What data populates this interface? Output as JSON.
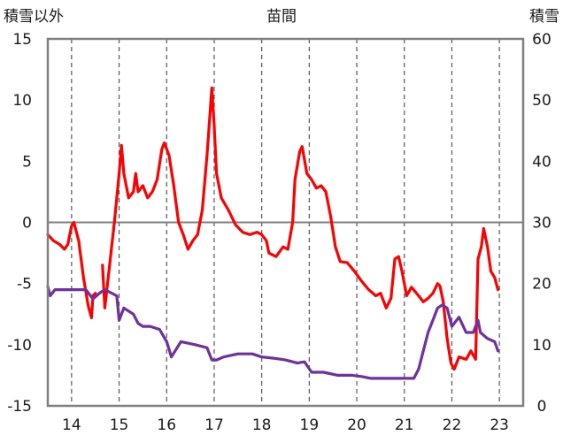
{
  "chart_data": {
    "type": "line",
    "title": "苗間",
    "left_axis_label": "積雪以外",
    "right_axis_label": "積雪",
    "x_ticks": [
      "14",
      "15",
      "16",
      "17",
      "18",
      "19",
      "20",
      "21",
      "22",
      "23"
    ],
    "y_left": {
      "ylim": [
        -15,
        15
      ],
      "ticks": [
        "15",
        "10",
        "5",
        "0",
        "-5",
        "-10",
        "-15"
      ]
    },
    "y_right": {
      "ylim": [
        0,
        60
      ],
      "ticks": [
        "60",
        "50",
        "40",
        "30",
        "20",
        "10",
        "0"
      ]
    },
    "grid": "vertical dashed at each year, horizontal zero line",
    "series": [
      {
        "axis": "left",
        "color": "#ff0000",
        "points": [
          [
            13.5,
            -1.0
          ],
          [
            13.62,
            -1.5
          ],
          [
            13.75,
            -1.8
          ],
          [
            13.85,
            -2.2
          ],
          [
            13.92,
            -1.8
          ],
          [
            14.0,
            -0.3
          ],
          [
            14.05,
            0.0
          ],
          [
            14.15,
            -1.5
          ],
          [
            14.25,
            -4.5
          ],
          [
            14.35,
            -6.8
          ],
          [
            14.42,
            -7.8
          ],
          [
            14.45,
            -6.0
          ],
          [
            14.5,
            -5.8
          ],
          [
            14.6,
            null
          ],
          [
            14.65,
            -3.5
          ],
          [
            14.7,
            -7.0
          ],
          [
            14.8,
            -3.5
          ],
          [
            14.9,
            0.0
          ],
          [
            14.95,
            2.0
          ],
          [
            15.0,
            4.0
          ],
          [
            15.05,
            6.3
          ],
          [
            15.1,
            4.0
          ],
          [
            15.15,
            3.0
          ],
          [
            15.2,
            2.0
          ],
          [
            15.3,
            2.5
          ],
          [
            15.35,
            4.0
          ],
          [
            15.4,
            2.5
          ],
          [
            15.5,
            3.0
          ],
          [
            15.6,
            2.0
          ],
          [
            15.7,
            2.5
          ],
          [
            15.8,
            3.5
          ],
          [
            15.9,
            6.0
          ],
          [
            15.95,
            6.5
          ],
          [
            16.05,
            5.5
          ],
          [
            16.15,
            3.0
          ],
          [
            16.25,
            0.0
          ],
          [
            16.35,
            -1.0
          ],
          [
            16.45,
            -2.2
          ],
          [
            16.55,
            -1.5
          ],
          [
            16.65,
            -1.0
          ],
          [
            16.75,
            1.0
          ],
          [
            16.85,
            5.5
          ],
          [
            16.95,
            11.0
          ],
          [
            17.0,
            8.0
          ],
          [
            17.05,
            4.0
          ],
          [
            17.15,
            2.0
          ],
          [
            17.3,
            1.0
          ],
          [
            17.45,
            -0.2
          ],
          [
            17.6,
            -0.8
          ],
          [
            17.75,
            -1.0
          ],
          [
            17.9,
            -0.8
          ],
          [
            18.0,
            -1.0
          ],
          [
            18.1,
            -1.5
          ],
          [
            18.15,
            -2.5
          ],
          [
            18.3,
            -2.8
          ],
          [
            18.45,
            -2.0
          ],
          [
            18.55,
            -2.2
          ],
          [
            18.65,
            0.0
          ],
          [
            18.7,
            3.5
          ],
          [
            18.8,
            5.8
          ],
          [
            18.85,
            6.2
          ],
          [
            18.95,
            4.0
          ],
          [
            19.05,
            3.5
          ],
          [
            19.15,
            2.8
          ],
          [
            19.25,
            3.0
          ],
          [
            19.35,
            2.5
          ],
          [
            19.45,
            0.5
          ],
          [
            19.55,
            -2.0
          ],
          [
            19.65,
            -3.2
          ],
          [
            19.8,
            -3.3
          ],
          [
            19.95,
            -4.0
          ],
          [
            20.1,
            -4.8
          ],
          [
            20.25,
            -5.5
          ],
          [
            20.4,
            -6.0
          ],
          [
            20.5,
            -5.8
          ],
          [
            20.62,
            -7.0
          ],
          [
            20.72,
            -6.2
          ],
          [
            20.8,
            -3.0
          ],
          [
            20.88,
            -2.8
          ],
          [
            20.95,
            -4.0
          ],
          [
            21.05,
            -6.0
          ],
          [
            21.15,
            -5.3
          ],
          [
            21.3,
            -6.0
          ],
          [
            21.4,
            -6.5
          ],
          [
            21.5,
            -6.2
          ],
          [
            21.6,
            -5.8
          ],
          [
            21.7,
            -5.0
          ],
          [
            21.75,
            -5.2
          ],
          [
            21.82,
            -6.5
          ],
          [
            21.9,
            -9.5
          ],
          [
            21.98,
            -11.5
          ],
          [
            22.05,
            -12.0
          ],
          [
            22.15,
            -11.0
          ],
          [
            22.3,
            -11.2
          ],
          [
            22.4,
            -10.5
          ],
          [
            22.5,
            -11.2
          ],
          [
            22.55,
            -3.0
          ],
          [
            22.62,
            -2.0
          ],
          [
            22.67,
            -0.5
          ],
          [
            22.75,
            -2.0
          ],
          [
            22.82,
            -4.0
          ],
          [
            22.9,
            -4.5
          ],
          [
            22.97,
            -5.5
          ]
        ]
      },
      {
        "axis": "right",
        "color": "#7030a0",
        "points": [
          [
            13.5,
            19.5
          ],
          [
            13.55,
            18.0
          ],
          [
            13.65,
            19.0
          ],
          [
            14.0,
            19.0
          ],
          [
            14.3,
            19.0
          ],
          [
            14.45,
            17.5
          ],
          [
            14.6,
            18.5
          ],
          [
            14.7,
            19.0
          ],
          [
            14.95,
            18.0
          ],
          [
            15.0,
            14.0
          ],
          [
            15.1,
            16.0
          ],
          [
            15.3,
            15.0
          ],
          [
            15.4,
            13.5
          ],
          [
            15.5,
            13.0
          ],
          [
            15.65,
            13.0
          ],
          [
            15.85,
            12.5
          ],
          [
            16.0,
            10.5
          ],
          [
            16.1,
            8.0
          ],
          [
            16.3,
            10.5
          ],
          [
            16.6,
            10.0
          ],
          [
            16.85,
            9.5
          ],
          [
            16.95,
            7.5
          ],
          [
            17.05,
            7.5
          ],
          [
            17.2,
            8.0
          ],
          [
            17.5,
            8.5
          ],
          [
            17.8,
            8.5
          ],
          [
            18.0,
            8.0
          ],
          [
            18.25,
            7.8
          ],
          [
            18.5,
            7.5
          ],
          [
            18.75,
            7.0
          ],
          [
            18.9,
            7.2
          ],
          [
            19.05,
            5.5
          ],
          [
            19.3,
            5.5
          ],
          [
            19.6,
            5.0
          ],
          [
            19.9,
            5.0
          ],
          [
            20.1,
            4.8
          ],
          [
            20.3,
            4.5
          ],
          [
            20.5,
            4.5
          ],
          [
            20.75,
            4.5
          ],
          [
            21.0,
            4.5
          ],
          [
            21.2,
            4.5
          ],
          [
            21.3,
            6.0
          ],
          [
            21.4,
            9.0
          ],
          [
            21.5,
            12.0
          ],
          [
            21.6,
            14.0
          ],
          [
            21.7,
            16.0
          ],
          [
            21.8,
            16.5
          ],
          [
            21.9,
            16.0
          ],
          [
            22.0,
            13.0
          ],
          [
            22.15,
            14.5
          ],
          [
            22.3,
            12.0
          ],
          [
            22.45,
            12.0
          ],
          [
            22.55,
            14.0
          ],
          [
            22.6,
            12.0
          ],
          [
            22.75,
            11.0
          ],
          [
            22.9,
            10.5
          ],
          [
            22.97,
            9.0
          ]
        ]
      }
    ]
  }
}
